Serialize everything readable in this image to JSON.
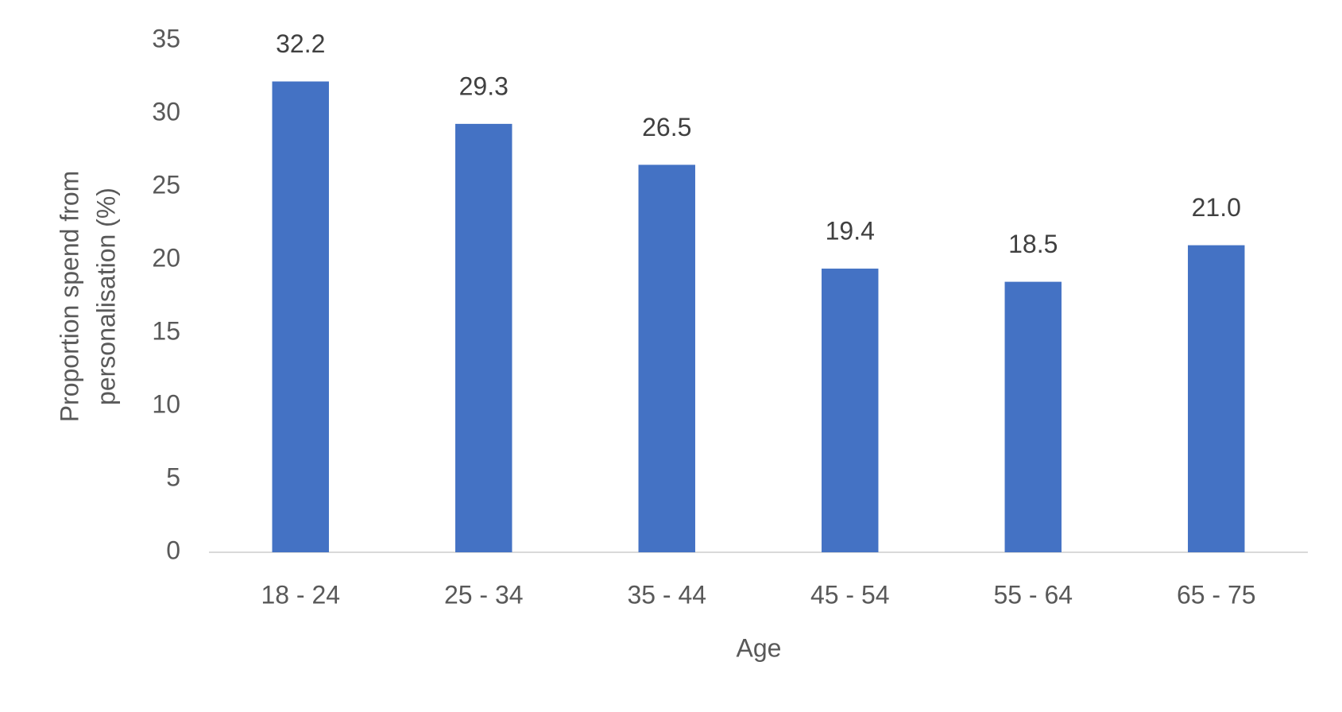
{
  "chart_data": {
    "type": "bar",
    "ylabel": [
      "Proportion spend from",
      "personalisation (%)"
    ],
    "xlabel": "Age",
    "categories": [
      "18 - 24",
      "25 - 34",
      "35 - 44",
      "45 - 54",
      "55 - 64",
      "65 - 75"
    ],
    "values": [
      32.2,
      29.3,
      26.5,
      19.4,
      18.5,
      21.0
    ],
    "value_labels": [
      "32.2",
      "29.3",
      "26.5",
      "19.4",
      "18.5",
      "21.0"
    ],
    "color": "#4472c4",
    "ylim": [
      0,
      35
    ],
    "yticks": [
      0,
      5,
      10,
      15,
      20,
      25,
      30,
      35
    ],
    "grid": false
  }
}
